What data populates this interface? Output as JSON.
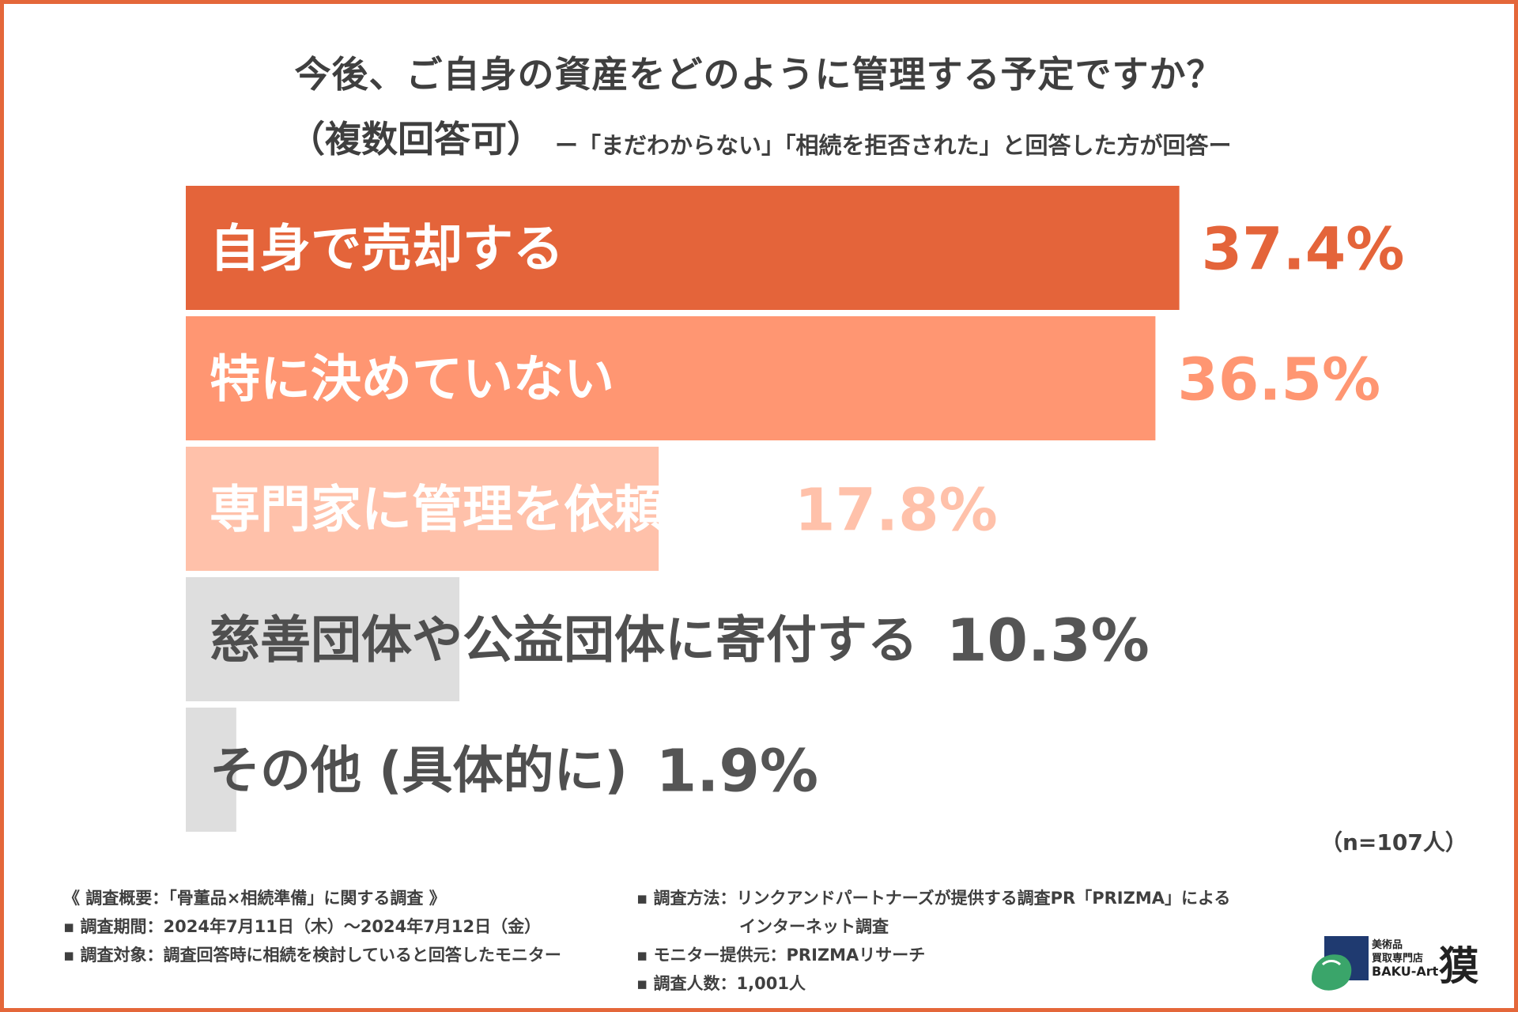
{
  "header": {
    "title": "今後、ご自身の資産をどのように管理する予定ですか？",
    "title_sub": "（複数回答可）",
    "subtitle": "ー「まだわからない」「相続を拒否された」と回答した方が回答ー"
  },
  "chart_data": {
    "type": "bar",
    "orientation": "horizontal",
    "categories": [
      "自身で売却する",
      "特に決めていない",
      "専門家に管理を依頼する",
      "慈善団体や公益団体に寄付する",
      "その他 (具体的に)"
    ],
    "values": [
      37.4,
      36.5,
      17.8,
      10.3,
      1.9
    ],
    "value_labels": [
      "37.4%",
      "36.5%",
      "17.8%",
      "10.3%",
      "1.9%"
    ],
    "bar_colors": [
      "#e4643a",
      "#ff9672",
      "#ffc1aa",
      "#dedede",
      "#dedede"
    ],
    "label_colors": [
      "#ffffff",
      "#ffffff",
      "#ffffff",
      "#4f4f4f",
      "#4f4f4f"
    ],
    "value_colors": [
      "#e4643a",
      "#ff9672",
      "#ffc1aa",
      "#555555",
      "#555555"
    ],
    "xlim": [
      0,
      100
    ],
    "unit": "%"
  },
  "sample_size": "（n=107人）",
  "footnotes": {
    "left": [
      "《 調査概要：「骨董品×相続準備」に関する調査 》",
      "▪ 調査期間：2024年7月11日（木）～2024年7月12日（金）",
      "▪ 調査対象：調査回答時に相続を検討していると回答したモニター"
    ],
    "right": [
      "▪ 調査方法：リンクアンドパートナーズが提供する調査PR「PRIZMA」による",
      "インターネット調査",
      "▪ モニター提供元：PRIZMAリサーチ",
      "▪ 調査人数：1,001人"
    ]
  },
  "logo": {
    "line1": "美術品",
    "line2": "買取専門店",
    "line3": "BAKU-Art",
    "kanji": "獏",
    "colors": {
      "navy": "#1f3a70",
      "green": "#3aa56a"
    }
  }
}
